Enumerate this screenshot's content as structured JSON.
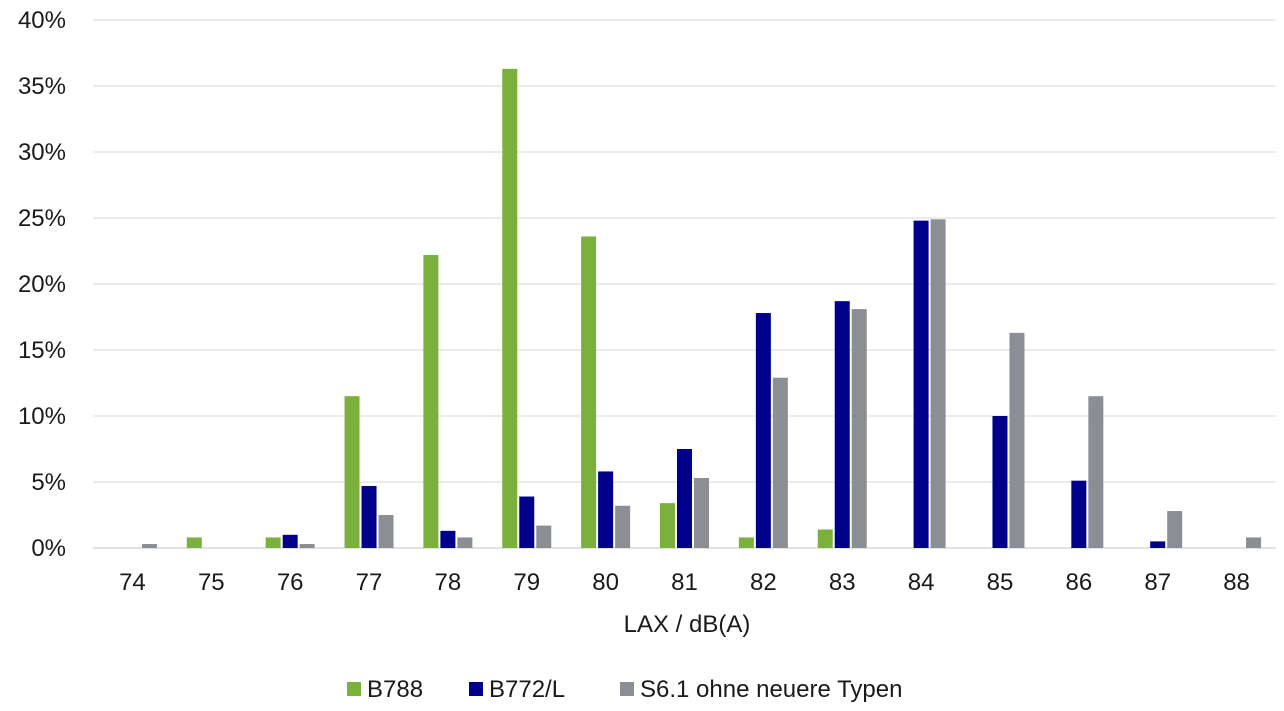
{
  "chart_data": {
    "type": "bar",
    "title": "",
    "xlabel": "LAX / dB(A)",
    "ylabel": "",
    "categories": [
      "74",
      "75",
      "76",
      "77",
      "78",
      "79",
      "80",
      "81",
      "82",
      "83",
      "84",
      "85",
      "86",
      "87",
      "88"
    ],
    "series": [
      {
        "name": "B788",
        "color": "#7cb03c",
        "values": [
          0,
          0.8,
          0.8,
          11.5,
          22.2,
          36.3,
          23.6,
          3.4,
          0.8,
          1.4,
          0,
          0,
          0,
          0,
          0
        ]
      },
      {
        "name": "B772/L",
        "color": "#00008b",
        "values": [
          0,
          0,
          1.0,
          4.7,
          1.3,
          3.9,
          5.8,
          7.5,
          17.8,
          18.7,
          24.8,
          10.0,
          5.1,
          0.5,
          0
        ]
      },
      {
        "name": "S6.1 ohne neuere Typen",
        "color": "#8b8f94",
        "values": [
          0.3,
          0,
          0.3,
          2.5,
          0.8,
          1.7,
          3.2,
          5.3,
          12.9,
          18.1,
          24.9,
          16.3,
          11.5,
          2.8,
          0.8
        ]
      }
    ],
    "ylim": [
      0,
      40
    ],
    "yticks": [
      0,
      5,
      10,
      15,
      20,
      25,
      30,
      35,
      40
    ],
    "ytick_suffix": "%",
    "grid": true,
    "legend_position": "bottom"
  }
}
